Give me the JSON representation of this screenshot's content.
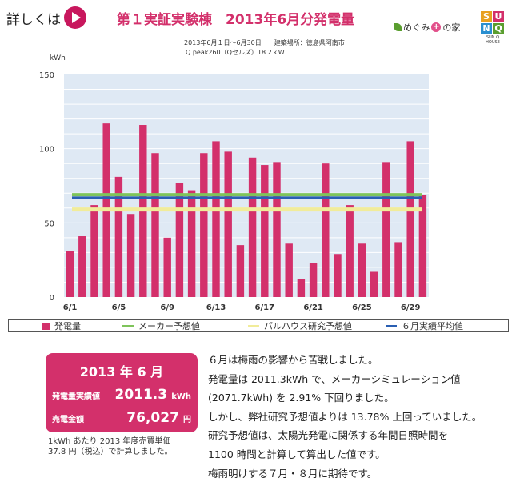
{
  "header": {
    "detail_label": "詳しくは",
    "title": "第１実証実験棟　2013年6月分発電量",
    "info_line1": "2013年6月１日〜6月30日　　建築場所：徳島県阿南市",
    "info_line2": "Q.peak260（Qセルズ）18.2ｋW",
    "brand_megumi_a": "めぐみ",
    "brand_megumi_b": "の家",
    "brand_plus": "+",
    "brand_sunq_letters": [
      "S",
      "U",
      "N",
      "Q"
    ],
    "brand_sunq_tag": "SUN Q HOUSE"
  },
  "colors": {
    "accent": "#d3306b",
    "bar": "#d3306b",
    "maker": "#7fc45b",
    "research": "#f1ec9a",
    "average": "#2a5fb2"
  },
  "chart_data": {
    "type": "bar",
    "unit": "kWh",
    "ylim": [
      0,
      150
    ],
    "yticks": [
      0,
      50,
      100,
      150
    ],
    "x_tick_labels": [
      "6/1",
      "6/5",
      "6/9",
      "6/13",
      "6/17",
      "6/21",
      "6/25",
      "6/29"
    ],
    "x_tick_days": [
      1,
      5,
      9,
      13,
      17,
      21,
      25,
      29
    ],
    "days": [
      1,
      2,
      3,
      4,
      5,
      6,
      7,
      8,
      9,
      10,
      11,
      12,
      13,
      14,
      15,
      16,
      17,
      18,
      19,
      20,
      21,
      22,
      23,
      24,
      25,
      26,
      27,
      28,
      29,
      30
    ],
    "series": [
      {
        "name": "発電量",
        "type": "bar",
        "values": [
          31,
          41,
          62,
          117,
          81,
          56,
          116,
          97,
          40,
          77,
          72,
          97,
          105,
          98,
          35,
          94,
          89,
          91,
          36,
          12,
          23,
          90,
          29,
          62,
          36,
          17,
          91,
          37,
          105,
          69
        ]
      },
      {
        "name": "メーカー予想値",
        "type": "line",
        "value": 69
      },
      {
        "name": "パルハウス研究予想値",
        "type": "line",
        "value": 59
      },
      {
        "name": "６月実績平均値",
        "type": "line",
        "value": 67
      }
    ],
    "grid": true,
    "legend_position": "bottom"
  },
  "summary": {
    "month_label": "2013 年 6 月",
    "generation_label": "発電量実績値",
    "generation_value": "2011.3",
    "generation_unit": "kWh",
    "sales_label": "売電金額",
    "sales_value": "76,027",
    "sales_unit": "円",
    "note_line1": "1kWh あたり 2013 年度売買単価",
    "note_line2": "37.8 円（税込）で計算しました。"
  },
  "comment_lines": [
    "６月は梅雨の影響から苦戦しました。",
    "発電量は 2011.3kWh で、メーカーシミュレーション値",
    "(2071.7kWh) を 2.91% 下回りました。",
    "しかし、弊社研究予想値よりは 13.78% 上回っていました。",
    "研究予想値は、太陽光発電に関係する年間日照時間を",
    "1100 時間と計算して算出した値です。",
    "梅雨明けする７月・８月に期待です。"
  ]
}
